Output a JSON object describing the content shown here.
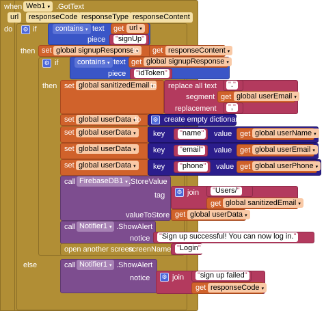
{
  "event": {
    "when": "when",
    "component": "Web1",
    "event_name": ".GotText",
    "params": [
      "url",
      "responseCode",
      "responseType",
      "responseContent"
    ],
    "do": "do"
  },
  "if1": {
    "if": "if",
    "then": "then",
    "else": "else",
    "contains": "contains",
    "text_label": "text",
    "get": "get",
    "url": "url",
    "piece_label": "piece",
    "piece_value": "signUp"
  },
  "set1": {
    "set": "set",
    "var": "global signupResponse",
    "to": "to",
    "get": "get",
    "value": "responseContent"
  },
  "if2": {
    "if": "if",
    "then": "then",
    "contains": "contains",
    "text_label": "text",
    "get": "get",
    "var": "global signupResponse",
    "piece_label": "piece",
    "piece_value": "idToken"
  },
  "set2": {
    "set": "set",
    "var": "global sanitizedEmail",
    "to": "to",
    "replace": "replace all text",
    "replace_value": ".",
    "segment_label": "segment",
    "get": "get",
    "segment_var": "global userEmail",
    "replacement_label": "replacement",
    "replacement_value": ","
  },
  "set3": {
    "set": "set",
    "var": "global userData",
    "to": "to",
    "dict": "create empty dictionary"
  },
  "set4": {
    "set": "set",
    "var": "global userData",
    "key_label": "key",
    "key": "name",
    "value_label": "value",
    "get": "get",
    "value_var": "global userName"
  },
  "set5": {
    "set": "set",
    "var": "global userData",
    "key_label": "key",
    "key": "email",
    "value_label": "value",
    "get": "get",
    "value_var": "global userEmail"
  },
  "set6": {
    "set": "set",
    "var": "global userData",
    "key_label": "key",
    "key": "phone",
    "value_label": "value",
    "get": "get",
    "value_var": "global userPhone"
  },
  "store": {
    "call": "call",
    "component": "FirebaseDB1",
    "method": ".StoreValue",
    "tag_label": "tag",
    "join": "join",
    "tag_str": "Users/",
    "get": "get",
    "tag_var": "global sanitizedEmail",
    "value_label": "valueToStore",
    "value_var": "global userData"
  },
  "alert1": {
    "call": "call",
    "component": "Notifier1",
    "method": ".ShowAlert",
    "notice_label": "notice",
    "notice": "Sign up successful! You can now log in."
  },
  "open": {
    "label": "open another screen",
    "screen_label": "screenName",
    "screen": "Login"
  },
  "alert2": {
    "call": "call",
    "component": "Notifier1",
    "method": ".ShowAlert",
    "notice_label": "notice",
    "join": "join",
    "str": "sign up failed",
    "get": "get",
    "var": "responseCode"
  }
}
